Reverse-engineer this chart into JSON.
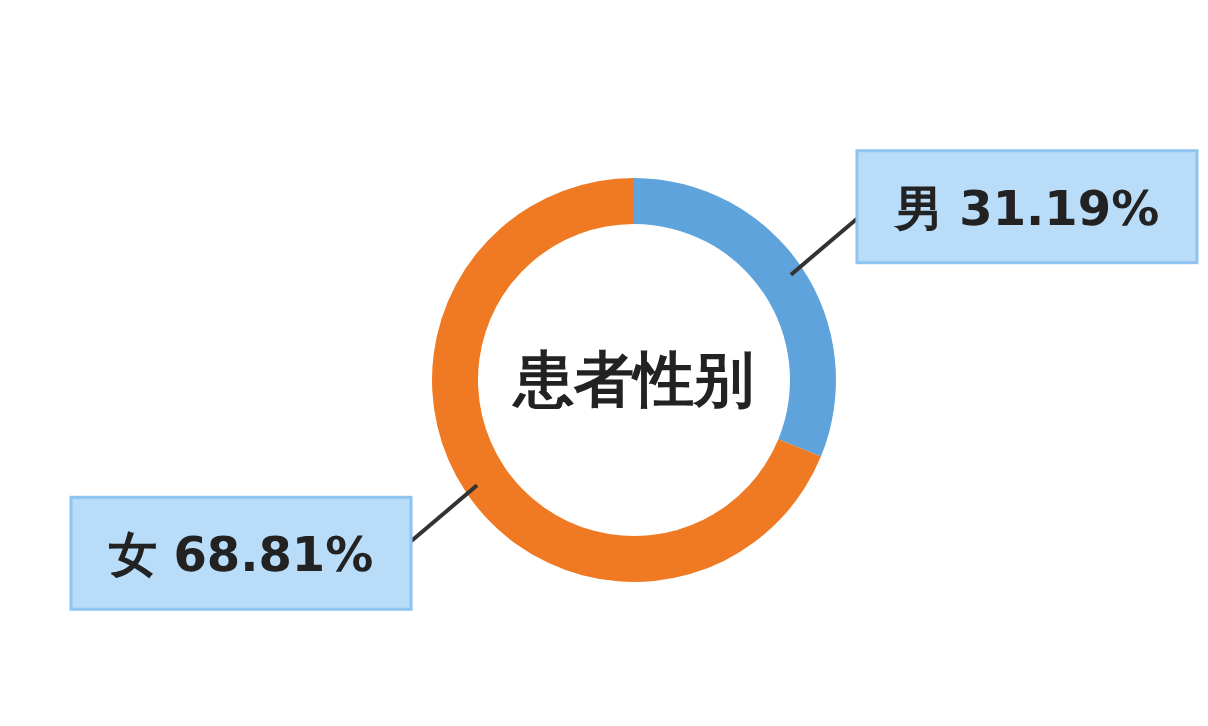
{
  "chart_data": {
    "type": "donut",
    "title": "患者性别",
    "categories": [
      "男",
      "女"
    ],
    "values": [
      31.19,
      68.81
    ],
    "colors": [
      "#5fa3dc",
      "#f07a23"
    ],
    "value_labels": [
      "31.19%",
      "68.81%"
    ]
  }
}
